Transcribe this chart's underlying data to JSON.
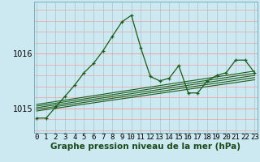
{
  "title": "Graphe pression niveau de la mer (hPa)",
  "background_color": "#cce8f0",
  "grid_color_v": "#aaccd8",
  "grid_color_h": "#f0a0a0",
  "line_color": "#1a5c1a",
  "x_labels": [
    "0",
    "1",
    "2",
    "3",
    "4",
    "5",
    "6",
    "7",
    "8",
    "9",
    "10",
    "11",
    "12",
    "13",
    "14",
    "15",
    "16",
    "17",
    "18",
    "19",
    "20",
    "21",
    "22",
    "23"
  ],
  "y_ticks": [
    1015,
    1016
  ],
  "ylim": [
    1014.55,
    1016.95
  ],
  "xlim": [
    -0.3,
    23.3
  ],
  "pressure_series": [
    1014.82,
    1014.82,
    1015.02,
    1015.22,
    1015.42,
    1015.65,
    1015.82,
    1016.05,
    1016.32,
    1016.58,
    1016.7,
    1016.1,
    1015.58,
    1015.5,
    1015.55,
    1015.78,
    1015.28,
    1015.28,
    1015.5,
    1015.6,
    1015.65,
    1015.88,
    1015.88,
    1015.65
  ],
  "trend_lines": [
    [
      1014.95,
      1015.52
    ],
    [
      1014.98,
      1015.56
    ],
    [
      1015.01,
      1015.6
    ],
    [
      1015.04,
      1015.64
    ],
    [
      1015.07,
      1015.68
    ]
  ],
  "title_fontsize": 7.5,
  "tick_fontsize": 6.5,
  "label_color": "#1a4a1a"
}
